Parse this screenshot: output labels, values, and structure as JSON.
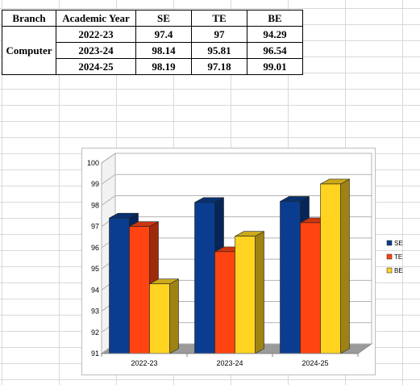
{
  "table": {
    "headers": [
      "Branch",
      "Academic Year",
      "SE",
      "TE",
      "BE"
    ],
    "branch": "Computer",
    "rows": [
      {
        "year": "2022-23",
        "se": "97.4",
        "te": "97",
        "be": "94.29"
      },
      {
        "year": "2023-24",
        "se": "98.14",
        "te": "95.81",
        "be": "96.54"
      },
      {
        "year": "2024-25",
        "se": "98.19",
        "te": "97.18",
        "be": "99.01"
      }
    ]
  },
  "chart_data": {
    "type": "bar",
    "categories": [
      "2022-23",
      "2023-24",
      "2024-25"
    ],
    "series": [
      {
        "name": "SE",
        "values": [
          97.4,
          98.14,
          98.19
        ],
        "color": "#0a3d8f"
      },
      {
        "name": "TE",
        "values": [
          97,
          95.81,
          97.18
        ],
        "color": "#ff4411"
      },
      {
        "name": "BE",
        "values": [
          94.29,
          96.54,
          99.01
        ],
        "color": "#ffd320"
      }
    ],
    "ylim": [
      91,
      100
    ],
    "yticks": [
      "91",
      "92",
      "93",
      "94",
      "95",
      "96",
      "97",
      "98",
      "99",
      "100"
    ],
    "grid": true,
    "legend": "right",
    "style": "3d"
  }
}
